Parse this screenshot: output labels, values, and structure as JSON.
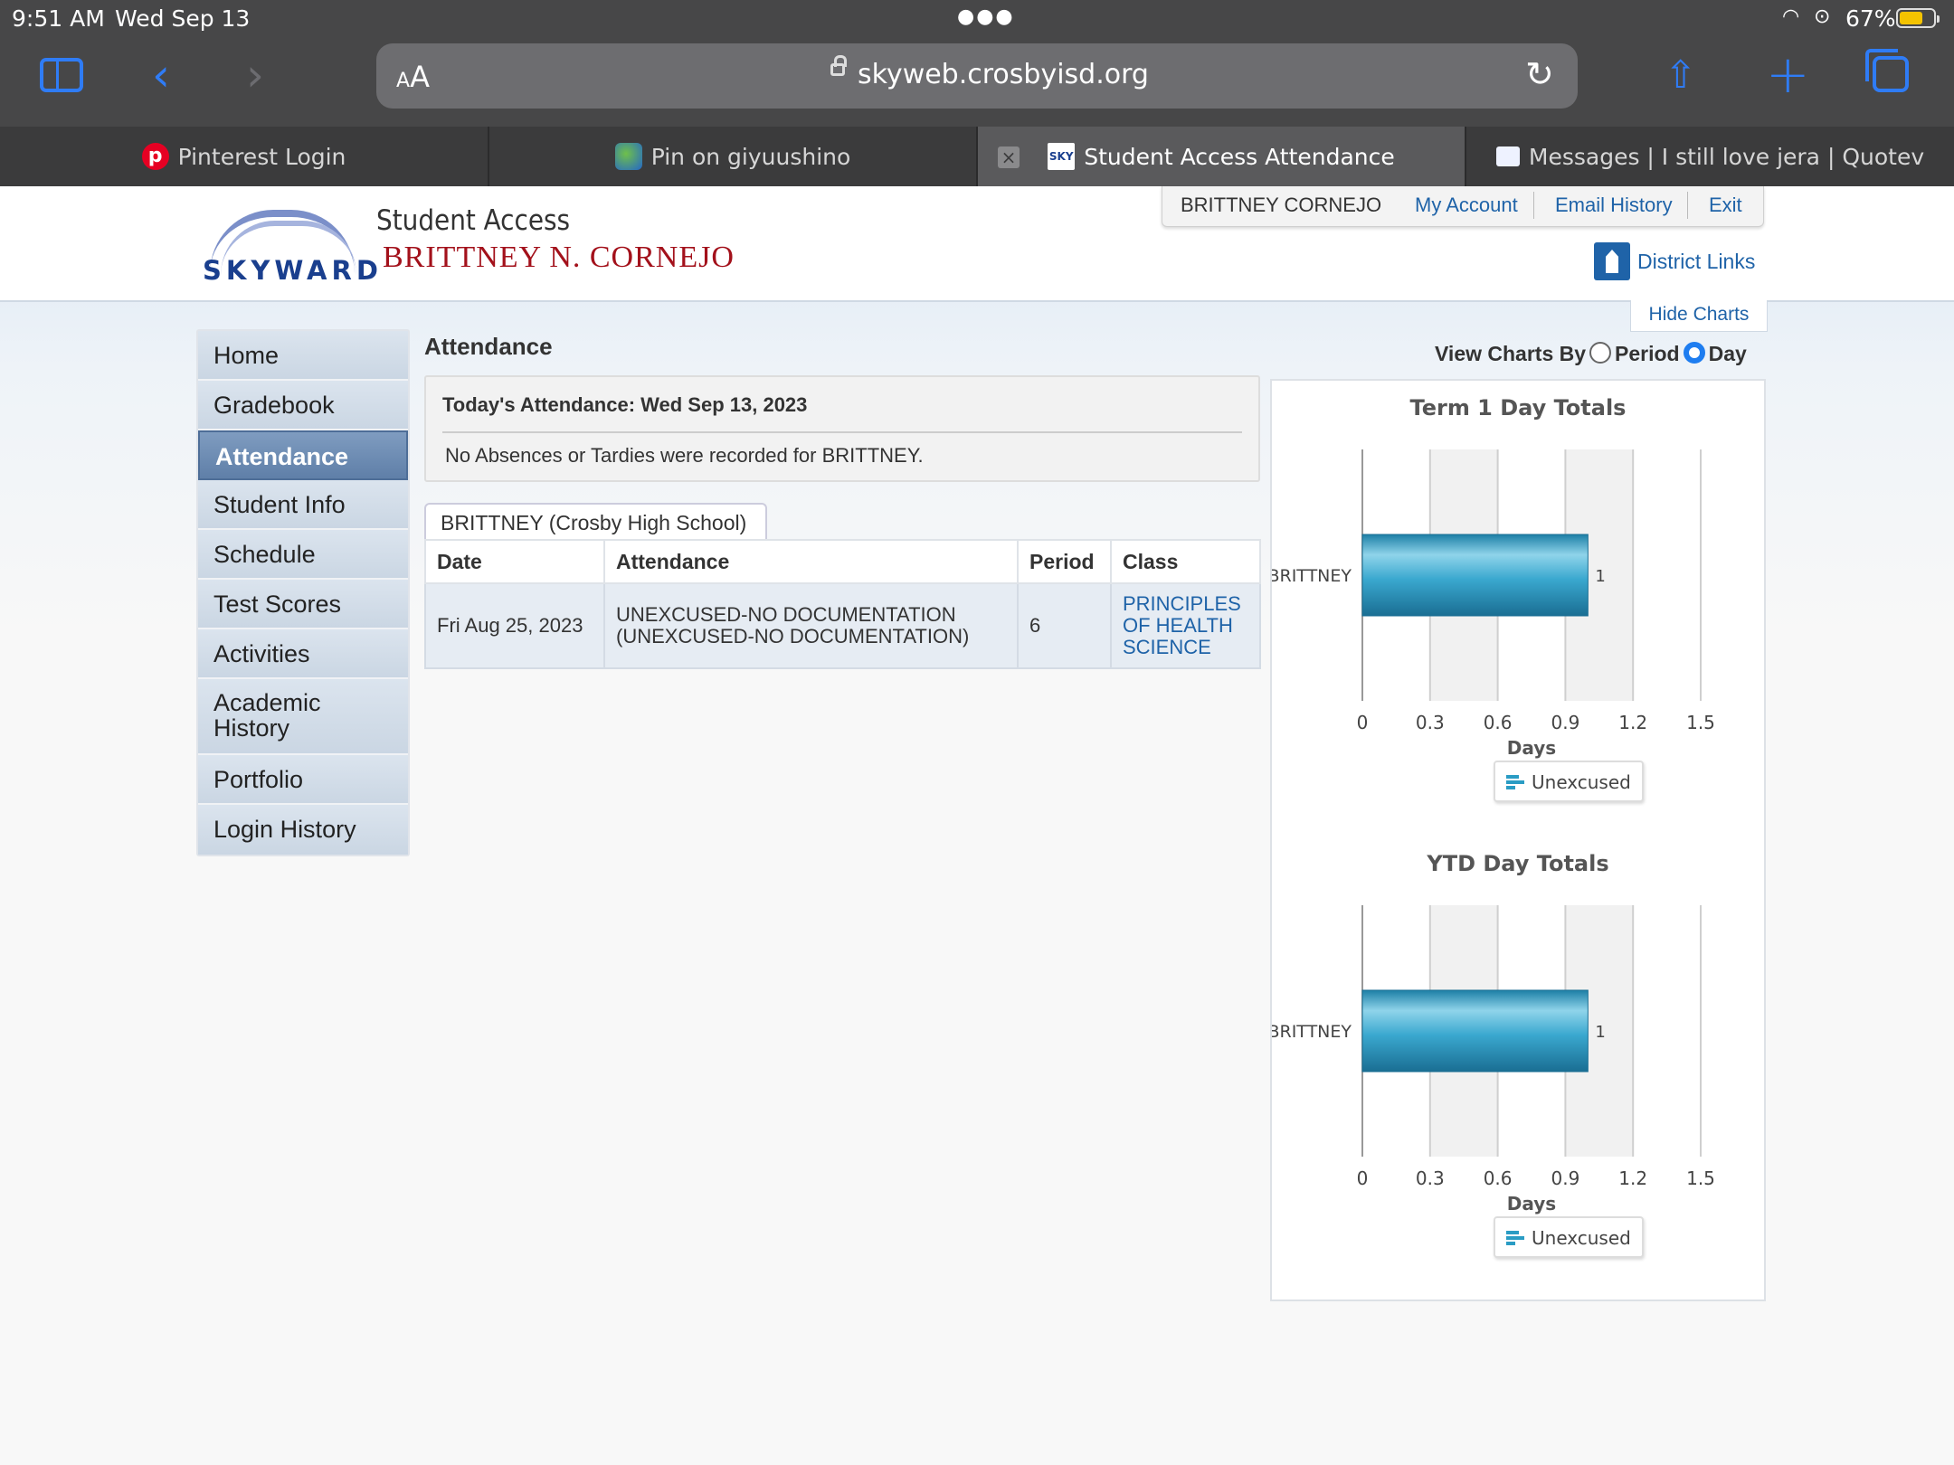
{
  "status_bar": {
    "time": "9:51 AM",
    "date": "Wed Sep 13",
    "battery": "67%"
  },
  "browser": {
    "url": "skyweb.crosbyisd.org",
    "aa_label": "AA",
    "tabs": [
      {
        "label": "Pinterest Login"
      },
      {
        "label": "Pin on giyuushino"
      },
      {
        "label": "Student Access Attendance"
      },
      {
        "label": "Messages | I still love jera | Quotev"
      }
    ]
  },
  "header": {
    "logo_text": "SKYWARD",
    "app_name": "Student Access",
    "student_name": "BRITTNEY N. CORNEJO",
    "user_menu": {
      "user": "BRITTNEY CORNEJO",
      "my_account": "My Account",
      "email_history": "Email History",
      "exit": "Exit"
    },
    "district_links": "District Links",
    "hide_charts": "Hide Charts"
  },
  "nav": {
    "items": [
      {
        "label": "Home"
      },
      {
        "label": "Gradebook"
      },
      {
        "label": "Attendance"
      },
      {
        "label": "Student Info"
      },
      {
        "label": "Schedule"
      },
      {
        "label": "Test Scores"
      },
      {
        "label": "Activities"
      },
      {
        "label": "Academic History"
      },
      {
        "label": "Portfolio"
      },
      {
        "label": "Login History"
      }
    ],
    "active": "Attendance"
  },
  "main": {
    "title": "Attendance",
    "today_heading": "Today's Attendance: Wed Sep 13, 2023",
    "today_message": "No Absences or Tardies were recorded for BRITTNEY.",
    "school_tab": "BRITTNEY (Crosby High School)",
    "table": {
      "headers": {
        "date": "Date",
        "attendance": "Attendance",
        "period": "Period",
        "class": "Class"
      },
      "rows": [
        {
          "date": "Fri Aug 25, 2023",
          "attendance": "UNEXCUSED-NO DOCUMENTATION (UNEXCUSED-NO DOCUMENTATION)",
          "period": "6",
          "class": "PRINCIPLES OF HEALTH SCIENCE"
        }
      ]
    }
  },
  "charts_controls": {
    "view_by_label": "View Charts By",
    "period_label": "Period",
    "day_label": "Day",
    "selected": "Day"
  },
  "chart_data": [
    {
      "type": "bar",
      "orientation": "horizontal",
      "title": "Term 1 Day Totals",
      "categories": [
        "BRITTNEY"
      ],
      "series": [
        {
          "name": "Unexcused",
          "values": [
            1
          ]
        }
      ],
      "xlabel": "Days",
      "xlim": [
        0,
        1.5
      ],
      "xticks": [
        "0",
        "0.3",
        "0.6",
        "0.9",
        "1.2",
        "1.5"
      ],
      "data_labels": [
        "1"
      ],
      "legend": "bottom",
      "color": "#2a9cc4"
    },
    {
      "type": "bar",
      "orientation": "horizontal",
      "title": "YTD Day Totals",
      "categories": [
        "BRITTNEY"
      ],
      "series": [
        {
          "name": "Unexcused",
          "values": [
            1
          ]
        }
      ],
      "xlabel": "Days",
      "xlim": [
        0,
        1.5
      ],
      "xticks": [
        "0",
        "0.3",
        "0.6",
        "0.9",
        "1.2",
        "1.5"
      ],
      "data_labels": [
        "1"
      ],
      "legend": "bottom",
      "color": "#2a9cc4"
    }
  ]
}
